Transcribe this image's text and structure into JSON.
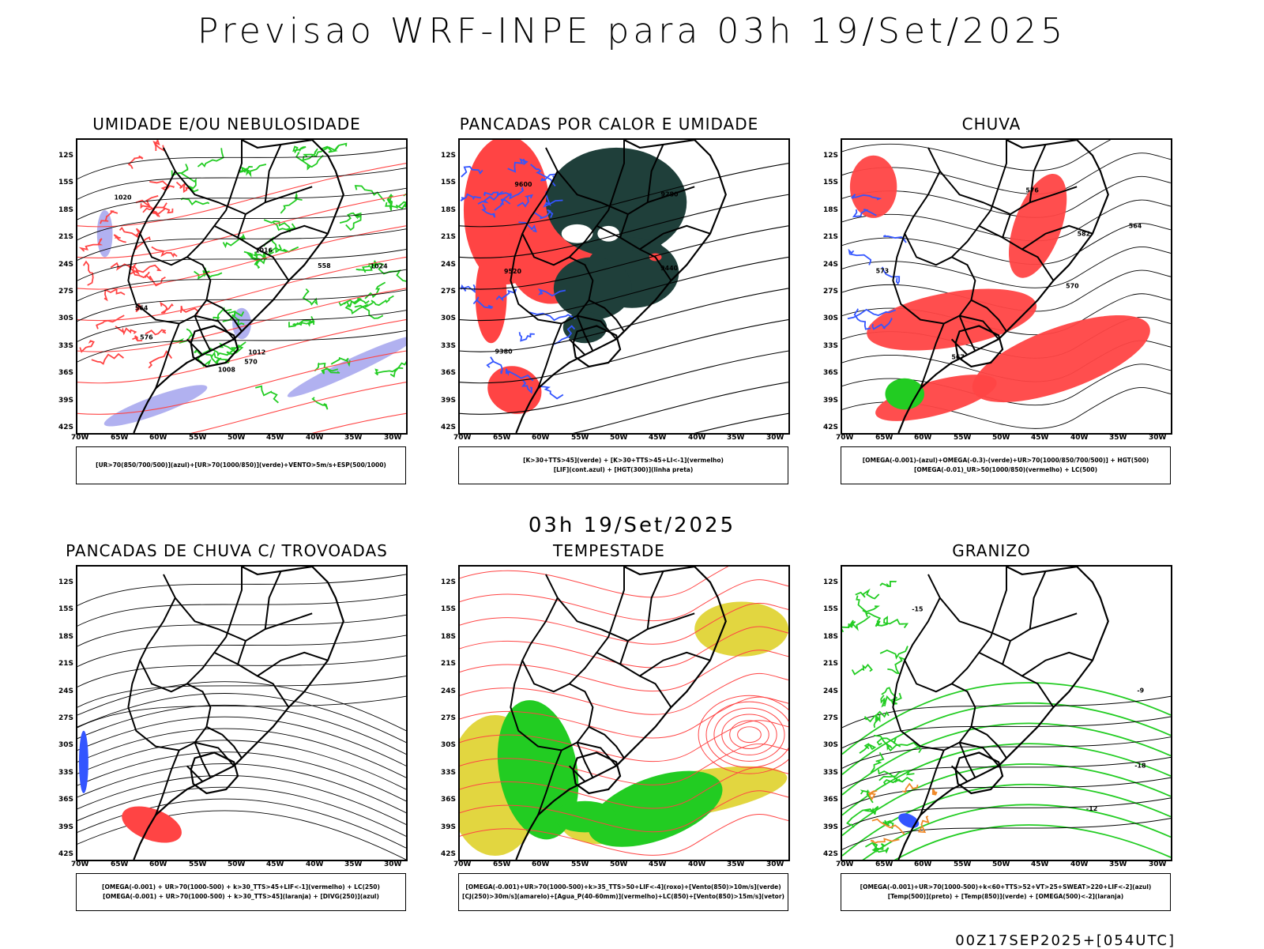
{
  "title": "Previsao WRF-INPE  para 03h 19/Set/2025",
  "subtitle": "03h 19/Set/2025",
  "footer": "00Z17SEP2025+[054UTC]",
  "lat_ticks": [
    "12S",
    "15S",
    "18S",
    "21S",
    "24S",
    "27S",
    "30S",
    "33S",
    "36S",
    "39S",
    "42S"
  ],
  "lon_ticks": [
    "70W",
    "65W",
    "60W",
    "55W",
    "50W",
    "45W",
    "40W",
    "35W",
    "30W"
  ],
  "colors": {
    "green": "#22cc22",
    "red": "#ff4444",
    "blue": "#3355ff",
    "lavender": "#a8a8ee",
    "darkteal": "#1f3f3a",
    "yellow": "#e2d640",
    "orange": "#f08a2a",
    "black": "#000000"
  },
  "panels": [
    {
      "id": "umidade",
      "title": "UMIDADE E/OU NEBULOSIDADE",
      "legend": [
        "[UR>70(850/700/500)](azul)+[UR>70(1000/850)](verde)+VENTO>5m/s+ESP(500/1000)"
      ],
      "contour_labels": [
        "1008",
        "1012",
        "1016",
        "1020",
        "1024",
        "576",
        "570",
        "564",
        "558"
      ]
    },
    {
      "id": "pancadas-calor",
      "title": "PANCADAS POR CALOR E UMIDADE",
      "legend": [
        "[K>30+TTS>45](verde) + [K>30+TTS>45+LI<-1](vermelho)",
        "[LIF](cont.azul) + [HGT(300)](linha preta)"
      ],
      "contour_labels": [
        "9600",
        "9520",
        "9440",
        "9380",
        "9280"
      ]
    },
    {
      "id": "chuva",
      "title": "CHUVA",
      "legend": [
        "[OMEGA(-0.001)-(azul)+OMEGA(-0.3)-(verde)+UR>70(1000/850/700/500)] + HGT(500)",
        "[OMEGA(-0.01)_UR>50(1000/850)(vermelho) + LC(500)"
      ],
      "contour_labels": [
        "582",
        "576",
        "570",
        "573",
        "567",
        "564"
      ]
    },
    {
      "id": "trovoadas",
      "title": "PANCADAS DE CHUVA C/ TROVOADAS",
      "legend": [
        "[OMEGA(-0.001) + UR>70(1000-500) + k>30_TTS>45+LIF<-1](vermelho) + LC(250)",
        "[OMEGA(-0.001) + UR>70(1000-500) + k>30_TTS>45](laranja) + [DIVG(250)](azul)"
      ],
      "contour_labels": []
    },
    {
      "id": "tempestade",
      "title": "TEMPESTADE",
      "legend": [
        "[OMEGA(-0.001)+UR>70(1000-500)+k>35_TTS>50+LIF<-4](roxo)+[Vento(850)>10m/s](verde)",
        "[CJ(250)>30m/s](amarelo)+[Agua_P(40-60mm)](vermelho)+LC(850)+[Vento(850)>15m/s](vetor)"
      ],
      "contour_labels": []
    },
    {
      "id": "granizo",
      "title": "GRANIZO",
      "legend": [
        "[OMEGA(-0.001)+UR>70(1000-500)+k<60+TTS>52+VT>25+SWEAT>220+LIF<-2](azul)",
        "[Temp(500)](preto) + [Temp(850)](verde) + [OMEGA(500)<-2](laranja)"
      ],
      "contour_labels": [
        "-12",
        "-15",
        "-18",
        "-9"
      ]
    }
  ]
}
